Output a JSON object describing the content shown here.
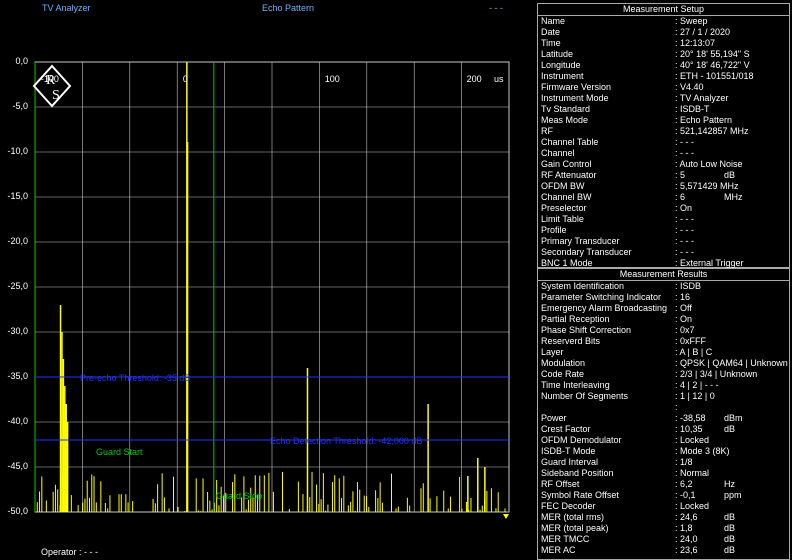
{
  "header": {
    "app_title": "TV Analyzer",
    "mode_title": "Echo Pattern",
    "dashes": "- - -"
  },
  "footer": {
    "operator": "Operator : - - -"
  },
  "colors": {
    "trace": "#ffff00",
    "guard": "#00cc00",
    "threshold": "#2233ff",
    "grid": "#c8c8c8",
    "label_blue": "#6ab4ff"
  },
  "chart_data": {
    "type": "bar",
    "x_unit": "us",
    "xlim": [
      -107,
      227
    ],
    "ylim": [
      -50,
      0
    ],
    "x_ticks": [
      "-100",
      "0",
      "100",
      "200"
    ],
    "y_ticks": [
      "0,0",
      "-5,0",
      "-10,0",
      "-15,0",
      "-20,0",
      "-25,0",
      "-30,0",
      "-35,0",
      "-40,0",
      "-45,0",
      "-50,0"
    ],
    "guard_start_x": -107,
    "guard_stop_x": 19,
    "guard_start_label": "Guard Start",
    "guard_stop_label": "Guard Stop",
    "pre_echo_threshold_db": -35,
    "pre_echo_threshold_label": "Pre-echo Threshold: -35 dB",
    "echo_threshold_db": -42,
    "echo_threshold_label": "Echo Detection Threshold: -42,000 dB",
    "peaks": [
      {
        "x": 0,
        "y": 0
      },
      {
        "x": 0.5,
        "y": -8.9
      },
      {
        "x": -89,
        "y": -27
      },
      {
        "x": -88,
        "y": -30
      },
      {
        "x": -87,
        "y": -33
      },
      {
        "x": -86,
        "y": -36
      },
      {
        "x": -85,
        "y": -38
      },
      {
        "x": -84,
        "y": -40
      },
      {
        "x": 85,
        "y": -34
      },
      {
        "x": 170,
        "y": -38
      },
      {
        "x": 205,
        "y": -44
      },
      {
        "x": 210,
        "y": -45
      },
      {
        "x": 198,
        "y": -46
      }
    ]
  },
  "setup": {
    "title": "Measurement Setup",
    "rows": [
      {
        "k": "Name",
        "v": ": Sweep",
        "u": ""
      },
      {
        "k": "Date",
        "v": ": 27 / 1 / 2020",
        "u": ""
      },
      {
        "k": "Time",
        "v": ": 12:13:07",
        "u": ""
      },
      {
        "k": "Latitude",
        "v": ": 20° 18' 55,194\" S",
        "u": ""
      },
      {
        "k": "Longitude",
        "v": ": 40° 18' 46,722\" V",
        "u": ""
      },
      {
        "k": "Instrument",
        "v": ": ETH - 101551/018",
        "u": ""
      },
      {
        "k": "Firmware Version",
        "v": ": V4.40",
        "u": ""
      },
      {
        "k": "Instrument Mode",
        "v": ": TV Analyzer",
        "u": ""
      },
      {
        "k": "Tv Standard",
        "v": ": ISDB-T",
        "u": ""
      },
      {
        "k": "Meas Mode",
        "v": ": Echo Pattern",
        "u": ""
      },
      {
        "k": "RF",
        "v": ": 521,142857 MHz",
        "u": ""
      },
      {
        "k": "Channel Table",
        "v": ": - - -",
        "u": ""
      },
      {
        "k": "Channel",
        "v": ": - - -",
        "u": ""
      },
      {
        "k": "Gain Control",
        "v": ": Auto Low Noise",
        "u": ""
      },
      {
        "k": "RF Attenuator",
        "v": ":     5",
        "u": "dB"
      },
      {
        "k": "OFDM BW",
        "v": ":   5,571429 MHz",
        "u": ""
      },
      {
        "k": "Channel BW",
        "v": ":     6",
        "u": "MHz"
      },
      {
        "k": "Preselector",
        "v": ": On",
        "u": ""
      },
      {
        "k": "Limit Table",
        "v": ": - - -",
        "u": ""
      },
      {
        "k": "Profile",
        "v": ": - - -",
        "u": ""
      },
      {
        "k": "Primary Transducer",
        "v": ": - - -",
        "u": ""
      },
      {
        "k": "Secondary Transducer",
        "v": ": - - -",
        "u": ""
      },
      {
        "k": "BNC 1 Mode",
        "v": ": External Trigger",
        "u": ""
      }
    ]
  },
  "results": {
    "title": "Measurement Results",
    "rows": [
      {
        "k": "System Identification",
        "v": ": ISDB",
        "u": ""
      },
      {
        "k": "Parameter Switching Indicator",
        "v": ":   16",
        "u": ""
      },
      {
        "k": "Emergency Alarm Broadcasting",
        "v": ": Off",
        "u": ""
      },
      {
        "k": "Partial Reception",
        "v": ": On",
        "u": ""
      },
      {
        "k": "Phase Shift Correction",
        "v": ": 0x7",
        "u": ""
      },
      {
        "k": "Reserverd Bits",
        "v": ": 0xFFF",
        "u": ""
      },
      {
        "k": "Layer",
        "v": ": A  |  B  |  C",
        "u": ""
      },
      {
        "k": "Modulation",
        "v": ": QPSK | QAM64 | Unknown",
        "u": ""
      },
      {
        "k": "Code Rate",
        "v": ": 2/3 | 3/4 | Unknown",
        "u": ""
      },
      {
        "k": "Time Interleaving",
        "v": ": 4 | 2 | - - -",
        "u": ""
      },
      {
        "k": "Number Of Segments",
        "v": ": 1 | 12 | 0",
        "u": ""
      },
      {
        "k": "",
        "v": ":",
        "u": ""
      },
      {
        "k": "Power",
        "v": ": -38,58",
        "u": "dBm"
      },
      {
        "k": "Crest Factor",
        "v": ":   10,35",
        "u": "dB"
      },
      {
        "k": "OFDM Demodulator",
        "v": ": Locked",
        "u": ""
      },
      {
        "k": "ISDB-T Mode",
        "v": ": Mode 3 (8K)",
        "u": ""
      },
      {
        "k": "Guard Interval",
        "v": ": 1/8",
        "u": ""
      },
      {
        "k": "  Sideband Position",
        "v": ": Normal",
        "u": ""
      },
      {
        "k": "  RF Offset",
        "v": ":     6,2",
        "u": "Hz"
      },
      {
        "k": "  Symbol Rate Offset",
        "v": ":    -0,1",
        "u": "ppm"
      },
      {
        "k": "FEC Decoder",
        "v": ": Locked",
        "u": ""
      },
      {
        "k": "  MER (total rms)",
        "v": ":   24,6",
        "u": "dB"
      },
      {
        "k": "  MER (total peak)",
        "v": ":    1,8",
        "u": "dB"
      },
      {
        "k": "  MER TMCC",
        "v": ":   24,0",
        "u": "dB"
      },
      {
        "k": "  MER AC",
        "v": ":   23,6",
        "u": "dB"
      }
    ]
  }
}
